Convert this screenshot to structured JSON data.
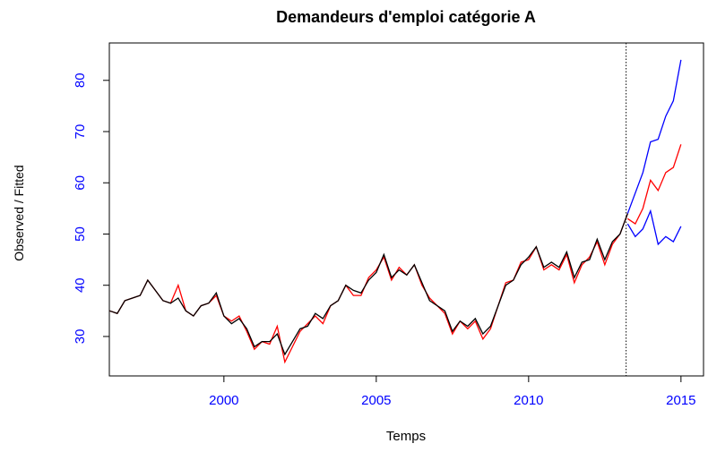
{
  "chart_data": {
    "type": "line",
    "title": "Demandeurs d'emploi catégorie A",
    "xlabel": "Temps",
    "ylabel": "Observed / Fitted",
    "xlim": [
      1996.24,
      2015.74
    ],
    "ylim": [
      22.3,
      87.3
    ],
    "xticks": [
      2000,
      2005,
      2010,
      2015
    ],
    "yticks": [
      30,
      40,
      50,
      60,
      70,
      80
    ],
    "tick_label_color": "#0000ff",
    "vline": 2013.2,
    "series": [
      {
        "color": "#ff0000",
        "x": [
          1996.25,
          1996.5,
          1996.75,
          1997,
          1997.25,
          1997.5,
          1997.75,
          1998,
          1998.25,
          1998.5,
          1998.75,
          1999,
          1999.25,
          1999.5,
          1999.75,
          2000,
          2000.25,
          2000.5,
          2000.75,
          2001,
          2001.25,
          2001.5,
          2001.75,
          2002,
          2002.25,
          2002.5,
          2002.75,
          2003,
          2003.25,
          2003.5,
          2003.75,
          2004,
          2004.25,
          2004.5,
          2004.75,
          2005,
          2005.25,
          2005.5,
          2005.75,
          2006,
          2006.25,
          2006.5,
          2006.75,
          2007,
          2007.25,
          2007.5,
          2007.75,
          2008,
          2008.25,
          2008.5,
          2008.75,
          2009,
          2009.25,
          2009.5,
          2009.75,
          2010,
          2010.25,
          2010.5,
          2010.75,
          2011,
          2011.25,
          2011.5,
          2011.75,
          2012,
          2012.25,
          2012.5,
          2012.75,
          2013,
          2013.25
        ],
        "values": [
          35,
          34.5,
          37,
          37.5,
          38,
          41,
          39,
          37,
          36.5,
          40,
          35,
          34,
          36,
          36.5,
          38,
          34,
          33,
          34,
          31,
          27.5,
          29,
          28.5,
          32,
          25,
          28,
          31,
          32.5,
          34,
          32.5,
          36,
          37,
          40,
          38,
          38,
          41.5,
          43,
          45.5,
          41,
          43.5,
          42,
          44,
          40,
          37.5,
          36,
          34.5,
          30.5,
          33,
          31.5,
          33,
          29.5,
          31.5,
          36,
          40.5,
          41,
          44.5,
          45,
          47.5,
          43,
          44,
          43,
          46,
          40.5,
          44,
          45.5,
          48.5,
          44,
          48,
          50,
          54
        ]
      },
      {
        "color": "#000000",
        "x": [
          1996.25,
          1996.5,
          1996.75,
          1997,
          1997.25,
          1997.5,
          1997.75,
          1998,
          1998.25,
          1998.5,
          1998.75,
          1999,
          1999.25,
          1999.5,
          1999.75,
          2000,
          2000.25,
          2000.5,
          2000.75,
          2001,
          2001.25,
          2001.5,
          2001.75,
          2002,
          2002.25,
          2002.5,
          2002.75,
          2003,
          2003.25,
          2003.5,
          2003.75,
          2004,
          2004.25,
          2004.5,
          2004.75,
          2005,
          2005.25,
          2005.5,
          2005.75,
          2006,
          2006.25,
          2006.5,
          2006.75,
          2007,
          2007.25,
          2007.5,
          2007.75,
          2008,
          2008.25,
          2008.5,
          2008.75,
          2009,
          2009.25,
          2009.5,
          2009.75,
          2010,
          2010.25,
          2010.5,
          2010.75,
          2011,
          2011.25,
          2011.5,
          2011.75,
          2012,
          2012.25,
          2012.5,
          2012.75,
          2013,
          2013.25
        ],
        "values": [
          35,
          34.5,
          37,
          37.5,
          38,
          41,
          39,
          37,
          36.5,
          37.5,
          35,
          34,
          36,
          36.5,
          38.5,
          34,
          32.5,
          33.5,
          31.5,
          28,
          29,
          29,
          30.5,
          26.5,
          29,
          31.5,
          32,
          34.5,
          33.5,
          36,
          37,
          40,
          39,
          38.5,
          41,
          42.5,
          46,
          41.5,
          43,
          42,
          44,
          40.5,
          37,
          36,
          35,
          31,
          33,
          32,
          33.5,
          30.5,
          32,
          36,
          40,
          41,
          44,
          45.5,
          47.5,
          43.5,
          44.5,
          43.5,
          46.5,
          41.5,
          44.5,
          45,
          49,
          45,
          48.5,
          50,
          54
        ]
      },
      {
        "color": "#0000ff",
        "x": [
          2013.25,
          2013.5,
          2013.75,
          2014,
          2014.25,
          2014.5,
          2014.75,
          2015
        ],
        "values": [
          54,
          58,
          62,
          68,
          68.5,
          73,
          76,
          84
        ]
      },
      {
        "color": "#ff0000",
        "x": [
          2013.25,
          2013.5,
          2013.75,
          2014,
          2014.25,
          2014.5,
          2014.75,
          2015
        ],
        "values": [
          53,
          52,
          55,
          60.5,
          58.5,
          62,
          63,
          67.5
        ]
      },
      {
        "color": "#0000ff",
        "x": [
          2013.25,
          2013.5,
          2013.75,
          2014,
          2014.25,
          2014.5,
          2014.75,
          2015
        ],
        "values": [
          52,
          49.5,
          51,
          54.5,
          48,
          49.5,
          48.5,
          51.5
        ]
      }
    ]
  }
}
